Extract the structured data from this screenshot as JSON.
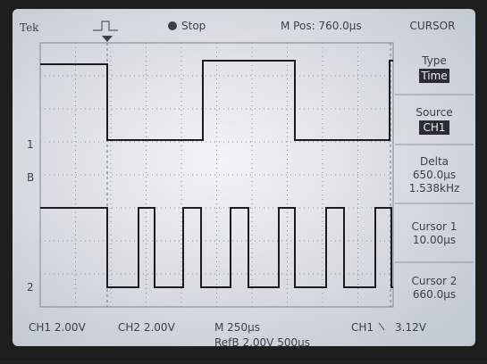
{
  "header": {
    "brand": "Tek",
    "status": "Stop",
    "position": "M Pos: 760.0μs",
    "menu_title": "CURSOR"
  },
  "menu": [
    {
      "label": "Type",
      "value": "Time"
    },
    {
      "label": "Source",
      "value": "CH1"
    },
    {
      "label": "Delta",
      "lines": [
        "650.0μs",
        "1.538kHz"
      ]
    },
    {
      "label": "Cursor 1",
      "lines": [
        "10.00μs"
      ]
    },
    {
      "label": "Cursor 2",
      "lines": [
        "660.0μs"
      ]
    }
  ],
  "markers": [
    "1",
    "B",
    "2"
  ],
  "footer": {
    "ch1": "CH1 2.00V",
    "ch2": "CH2 2.00V",
    "timebase": "M 250μs",
    "trigger": "CH1",
    "trigger_level": "3.12V",
    "ref": "RefB 2.00V 500μs"
  }
}
